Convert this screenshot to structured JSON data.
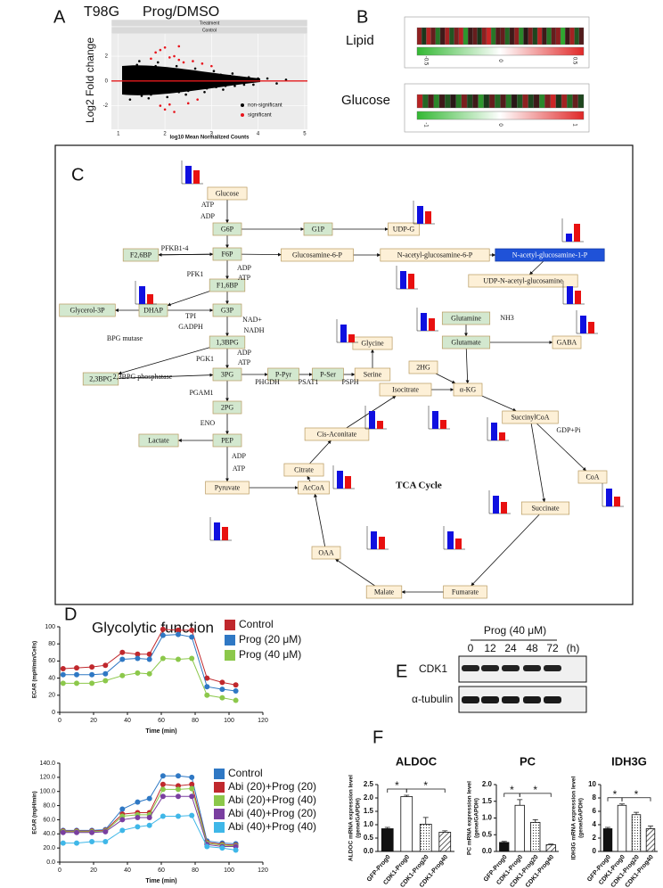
{
  "panel_labels": [
    "A",
    "B",
    "C",
    "D",
    "E",
    "F"
  ],
  "chart_data": [
    {
      "type": "scatter",
      "title": "T98G",
      "subtitle": "Prog/DMSO",
      "strips": [
        "Treatment",
        "Control"
      ],
      "ylabel": "Log2 Fold change",
      "xlabel": "log10 Mean Normalized Counts",
      "xlim": [
        0.85,
        5.06
      ],
      "ylim": [
        -3.9,
        3.8
      ],
      "xticks": [
        1,
        2,
        3,
        4,
        5
      ],
      "yticks": [
        -2,
        0,
        2
      ],
      "reference_line": {
        "value": 0,
        "color": "#e31a1c"
      },
      "grid": true,
      "series": [
        {
          "name": "non-significant",
          "color": "#000000",
          "x": [
            1.2,
            1.3,
            1.4,
            1.5,
            1.6,
            1.7,
            1.8,
            1.9,
            2.0,
            2.1,
            2.2,
            2.3,
            2.4,
            2.5,
            2.6,
            2.7,
            2.8,
            2.9,
            3.0,
            3.1,
            3.2,
            3.3,
            3.4,
            3.5,
            3.6,
            3.7,
            3.8,
            3.9,
            4.0,
            4.2,
            4.4,
            4.6,
            1.25,
            1.45,
            1.65,
            1.85,
            2.05,
            2.25,
            2.45,
            2.65,
            2.85,
            3.05,
            3.25,
            3.45
          ],
          "values": [
            1.1,
            -1.0,
            1.3,
            -1.2,
            0.9,
            -1.1,
            1.2,
            -0.8,
            1.0,
            -0.9,
            0.8,
            -0.9,
            0.7,
            -0.8,
            0.7,
            -0.6,
            0.6,
            -0.6,
            0.5,
            -0.5,
            0.5,
            -0.4,
            0.4,
            -0.4,
            0.3,
            -0.3,
            0.3,
            -0.3,
            0.2,
            0.2,
            -0.2,
            0.1,
            -1.5,
            1.6,
            -1.4,
            1.5,
            -1.3,
            1.2,
            -1.1,
            1.0,
            -0.9,
            0.8,
            -0.7,
            0.6
          ]
        },
        {
          "name": "significant",
          "color": "#e8141c",
          "x": [
            1.8,
            1.9,
            2.0,
            2.1,
            2.2,
            2.3,
            2.4,
            2.6,
            2.8,
            3.0,
            1.9,
            2.0,
            2.2,
            2.5,
            2.7,
            1.7,
            2.1,
            2.3
          ],
          "values": [
            2.3,
            2.5,
            2.7,
            1.9,
            2.0,
            1.7,
            1.5,
            1.6,
            1.4,
            1.2,
            -2.0,
            -2.3,
            -2.5,
            -1.8,
            -1.5,
            1.8,
            -1.9,
            2.8
          ]
        }
      ]
    },
    {
      "type": "heatmap",
      "title": "Lipid",
      "zlim": [
        -0.5,
        0.5
      ],
      "zticks": [
        -0.5,
        0,
        0.5
      ],
      "colors": [
        "#33b833",
        "#151515",
        "#e02828"
      ],
      "values": [
        0.3,
        -0.1,
        0.4,
        0.2,
        -0.3,
        0.1,
        0.35,
        -0.2,
        0.25,
        0.4,
        -0.4,
        0.1,
        0.2,
        -0.1,
        0.3,
        0.45,
        -0.3,
        0.15,
        0.2,
        -0.25,
        0.1,
        0.3,
        -0.35,
        0.05,
        0.25,
        -0.15,
        0.4,
        0.1,
        -0.3,
        0.2,
        0.3,
        -0.45,
        0.1,
        0.35,
        -0.2,
        0.15
      ]
    },
    {
      "type": "heatmap",
      "title": "Glucose",
      "zlim": [
        -1,
        1
      ],
      "zticks": [
        -1,
        0,
        1
      ],
      "colors": [
        "#33b833",
        "#151515",
        "#e02828"
      ],
      "values": [
        0.8,
        -0.5,
        0.3,
        -0.7,
        0.2,
        -0.4,
        0.1,
        -0.6,
        0.5,
        -0.3,
        0.2,
        -0.8,
        -0.2,
        0.4,
        -0.5,
        0.3,
        -0.6,
        0.1,
        -0.4,
        0.6,
        -0.3,
        0.2,
        -0.7,
        0.5,
        0.9,
        -0.2,
        0.7,
        -0.5,
        0.4,
        -0.3
      ]
    },
    {
      "type": "line",
      "title": "Glycolytic function",
      "ylabel": "ECAR (mpH/min/Cells)",
      "xlabel": "Time (min)",
      "x": [
        2,
        10,
        19,
        27,
        37,
        46,
        53,
        61,
        70,
        78,
        87,
        96,
        104
      ],
      "xlim": [
        0,
        120
      ],
      "ylim": [
        0,
        100
      ],
      "xticks": [
        0,
        20,
        40,
        60,
        80,
        100,
        120
      ],
      "yticks": [
        0,
        20,
        40,
        60,
        80,
        100
      ],
      "series": [
        {
          "name": "Control",
          "color": "#c0282d",
          "values": [
            51,
            52,
            53,
            55,
            70,
            68,
            68,
            97,
            96,
            96,
            40,
            35,
            32
          ]
        },
        {
          "name": "Prog (20 μM)",
          "color": "#2f78c4",
          "values": [
            44,
            44,
            44,
            45,
            62,
            63,
            62,
            90,
            91,
            88,
            30,
            27,
            25
          ]
        },
        {
          "name": "Prog (40 μM)",
          "color": "#8cc84b",
          "values": [
            34,
            34,
            34,
            37,
            43,
            46,
            45,
            63,
            62,
            63,
            20,
            17,
            14
          ]
        }
      ]
    },
    {
      "type": "line",
      "ylabel": "ECAR (mpH/min)",
      "xlabel": "Time (min)",
      "x": [
        2,
        10,
        19,
        27,
        37,
        46,
        53,
        61,
        70,
        78,
        87,
        96,
        104
      ],
      "xlim": [
        0,
        120
      ],
      "ylim": [
        0,
        140
      ],
      "xticks": [
        0,
        20,
        40,
        60,
        80,
        100,
        120
      ],
      "yticks": [
        {
          "value": 0,
          "label": "0.0"
        },
        {
          "value": 20,
          "label": "20.0"
        },
        {
          "value": 40,
          "label": "40.0"
        },
        {
          "value": 60,
          "label": "60.0"
        },
        {
          "value": 80,
          "label": "80.0"
        },
        {
          "value": 100,
          "label": "100.0"
        },
        {
          "value": 120,
          "label": "120.0"
        },
        {
          "value": 140,
          "label": "140.0"
        }
      ],
      "series": [
        {
          "name": "Control",
          "color": "#2f78c4",
          "values": [
            45,
            45,
            45,
            46,
            75,
            85,
            90,
            122,
            122,
            120,
            30,
            27,
            26
          ]
        },
        {
          "name": "Abi (20)+Prog (20)",
          "color": "#c0282d",
          "values": [
            44,
            44,
            44,
            45,
            68,
            70,
            70,
            110,
            108,
            110,
            28,
            25,
            24
          ]
        },
        {
          "name": "Abi (20)+Prog (40)",
          "color": "#8cc84b",
          "values": [
            43,
            43,
            43,
            44,
            65,
            67,
            67,
            103,
            103,
            104,
            27,
            24,
            23
          ]
        },
        {
          "name": "Abi (40)+Prog (20)",
          "color": "#7a3fa0",
          "values": [
            42,
            42,
            42,
            43,
            60,
            63,
            63,
            93,
            93,
            93,
            25,
            22,
            22
          ]
        },
        {
          "name": "Abi (40)+Prog (40)",
          "color": "#3fb7e8",
          "values": [
            27,
            27,
            29,
            29,
            45,
            50,
            52,
            65,
            65,
            66,
            22,
            20,
            17
          ]
        }
      ]
    },
    {
      "type": "bar",
      "title": "ALDOC",
      "ylabel": [
        "ALDOC mRNA expression level",
        "(gene/GAPDH)"
      ],
      "categories": [
        "GFP-Prog0",
        "CDK1-Prog0",
        "CDK1-Prog20",
        "CDK1-Prog40"
      ],
      "values": [
        0.85,
        2.05,
        1.02,
        0.72
      ],
      "errors": [
        0.05,
        0.05,
        0.25,
        0.05
      ],
      "fills": [
        "#111111",
        "#ffffff",
        "dotted",
        "hatched"
      ],
      "ylim": [
        0,
        2.5
      ],
      "yticks": [
        {
          "value": 0,
          "label": "0.0"
        },
        0.5,
        {
          "value": 1,
          "label": "1.0"
        },
        1.5,
        {
          "value": 2,
          "label": "2.0"
        },
        2.5
      ],
      "annotations": [
        "*",
        "*"
      ]
    },
    {
      "type": "bar",
      "title": "PC",
      "ylabel": [
        "PC mRNA expression level",
        "(gene/GAPDH)"
      ],
      "categories": [
        "GFP-Prog0",
        "CDK1-Prog0",
        "CDK1-Prog20",
        "CDK1-Prog40"
      ],
      "values": [
        0.27,
        1.38,
        0.87,
        0.2
      ],
      "errors": [
        0.03,
        0.17,
        0.08,
        0.02
      ],
      "fills": [
        "#111111",
        "#ffffff",
        "dotted",
        "hatched"
      ],
      "ylim": [
        0,
        2
      ],
      "yticks": [
        {
          "value": 0,
          "label": "0.0"
        },
        0.5,
        {
          "value": 1,
          "label": "1.0"
        },
        1.5,
        {
          "value": 2,
          "label": "2.0"
        }
      ],
      "annotations": [
        "*",
        "*"
      ]
    },
    {
      "type": "bar",
      "title": "IDH3G",
      "ylabel": [
        "IDH3G mRNA expression level",
        "(gene/GAPDH)"
      ],
      "categories": [
        "GFP-Prog0",
        "CDK1-Prog0",
        "CDK1-Prog20",
        "CDK1-Prog40"
      ],
      "values": [
        3.4,
        6.9,
        5.5,
        3.4
      ],
      "errors": [
        0.2,
        0.2,
        0.35,
        0.4
      ],
      "fills": [
        "#111111",
        "#ffffff",
        "dotted",
        "hatched"
      ],
      "ylim": [
        0,
        10
      ],
      "yticks": [
        0,
        2,
        4,
        6,
        8,
        10
      ],
      "annotations": [
        "*",
        "*"
      ]
    }
  ],
  "pathway": {
    "nodes": [
      {
        "label": "Glucose",
        "color": "#fdf0d7"
      },
      {
        "label": "G6P",
        "color": "#d3e8cf"
      },
      {
        "label": "G1P",
        "color": "#d3e8cf"
      },
      {
        "label": "UDP-G",
        "color": "#fdf0d7"
      },
      {
        "label": "F6P",
        "color": "#d3e8cf"
      },
      {
        "label": "F2,6BP",
        "color": "#d3e8cf"
      },
      {
        "label": "Glucosamine-6-P",
        "color": "#fdf0d7"
      },
      {
        "label": "N-acetyl-glucosamine-6-P",
        "color": "#fdf0d7"
      },
      {
        "label": "N-acetyl-glucosamine-1-P",
        "color": "#1f52d8"
      },
      {
        "label": "UDP-N-acetyl-glucosamine",
        "color": "#fdf0d7"
      },
      {
        "label": "F1,6BP",
        "color": "#d3e8cf"
      },
      {
        "label": "DHAP",
        "color": "#d3e8cf"
      },
      {
        "label": "G3P",
        "color": "#d3e8cf"
      },
      {
        "label": "Glycerol-3P",
        "color": "#d3e8cf"
      },
      {
        "label": "1,3BPG",
        "color": "#d3e8cf"
      },
      {
        "label": "2,3BPG",
        "color": "#d3e8cf"
      },
      {
        "label": "3PG",
        "color": "#d3e8cf"
      },
      {
        "label": "2PG",
        "color": "#d3e8cf"
      },
      {
        "label": "PEP",
        "color": "#d3e8cf"
      },
      {
        "label": "Lactate",
        "color": "#d3e8cf"
      },
      {
        "label": "Pyruvate",
        "color": "#fdf0d7"
      },
      {
        "label": "P-Pyr",
        "color": "#d3e8cf"
      },
      {
        "label": "P-Ser",
        "color": "#d3e8cf"
      },
      {
        "label": "Serine",
        "color": "#fdf0d7"
      },
      {
        "label": "Glycine",
        "color": "#fdf0d7"
      },
      {
        "label": "Glutamine",
        "color": "#d3e8cf"
      },
      {
        "label": "Glutamate",
        "color": "#d3e8cf"
      },
      {
        "label": "2HG",
        "color": "#fdf0d7"
      },
      {
        "label": "GABA",
        "color": "#fdf0d7"
      },
      {
        "label": "α-KG",
        "color": "#fdf0d7"
      },
      {
        "label": "Isocitrate",
        "color": "#fdf0d7"
      },
      {
        "label": "Cis-Aconitate",
        "color": "#fdf0d7"
      },
      {
        "label": "SuccinylCoA",
        "color": "#fdf0d7"
      },
      {
        "label": "CoA",
        "color": "#fdf0d7"
      },
      {
        "label": "Citrate",
        "color": "#fdf0d7"
      },
      {
        "label": "AcCoA",
        "color": "#fdf0d7"
      },
      {
        "label": "Succinate",
        "color": "#fdf0d7"
      },
      {
        "label": "OAA",
        "color": "#fdf0d7"
      },
      {
        "label": "Malate",
        "color": "#fdf0d7"
      },
      {
        "label": "Fumarate",
        "color": "#fdf0d7"
      }
    ],
    "labels": [
      "ATP",
      "ADP",
      "PFKB1-4",
      "PFK1",
      "ADP",
      "ATP",
      "TPI",
      "GADPH",
      "NAD+",
      "NADH",
      "BPG mutase",
      "PGK1",
      "ADP",
      "ATP",
      "2,3BPG phosphatase",
      "PGAM1",
      "ENO",
      "ADP",
      "ATP",
      "PHGDH",
      "PSAT1",
      "PSPH",
      "NH3",
      "GDP+Pi"
    ],
    "cycle_label": "TCA Cycle",
    "bar_colors": [
      "#1010e0",
      "#e81010"
    ],
    "mini_charts": [
      {
        "values": [
          1.0,
          0.75
        ]
      },
      {
        "values": [
          1.0,
          0.7
        ]
      },
      {
        "values": [
          0.45,
          1.0
        ]
      },
      {
        "values": [
          1.0,
          0.55
        ]
      },
      {
        "values": [
          1.0,
          0.85
        ]
      },
      {
        "values": [
          1.0,
          0.75
        ]
      },
      {
        "values": [
          1.0,
          0.45
        ]
      },
      {
        "values": [
          1.0,
          0.7
        ]
      },
      {
        "values": [
          1.0,
          0.65
        ]
      },
      {
        "values": [
          1.0,
          0.45
        ]
      },
      {
        "values": [
          1.0,
          0.5
        ]
      },
      {
        "values": [
          1.0,
          0.45
        ]
      },
      {
        "values": [
          1.0,
          0.7
        ]
      },
      {
        "values": [
          1.0,
          0.55
        ]
      },
      {
        "values": [
          1.0,
          0.65
        ]
      },
      {
        "values": [
          1.0,
          0.75
        ]
      },
      {
        "values": [
          1.0,
          0.7
        ]
      },
      {
        "values": [
          1.0,
          0.6
        ]
      }
    ]
  },
  "blot": {
    "title": "Prog (40 μM)",
    "lanes": [
      "0",
      "12",
      "24",
      "48",
      "72"
    ],
    "unit": "(h)",
    "rows": [
      "CDK1",
      "α-tubulin"
    ]
  }
}
